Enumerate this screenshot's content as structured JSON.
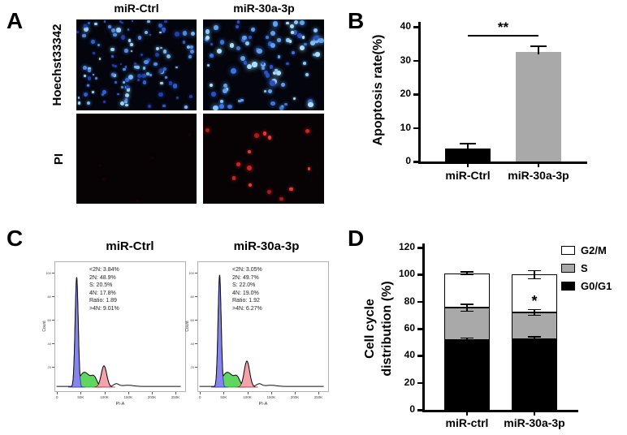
{
  "panel_a": {
    "label": "A",
    "columns": [
      "miR-Ctrl",
      "miR-30a-3p"
    ],
    "rows": [
      "Hoechst33342",
      "PI"
    ],
    "images": [
      {
        "name": "hoechst-mir-ctrl",
        "bg": "#03040c",
        "seed": 11,
        "count": 115,
        "rmin": 1.1,
        "rmax": 2.9,
        "palette": [
          "#2e5fd0",
          "#4f8ae8",
          "#74b6f8",
          "#9ad4ff",
          "#1f3faa"
        ]
      },
      {
        "name": "hoechst-mir-30a-3p",
        "bg": "#03040c",
        "seed": 23,
        "count": 88,
        "rmin": 1.6,
        "rmax": 3.4,
        "palette": [
          "#3a74e0",
          "#5fa0f0",
          "#86c8ff",
          "#a8e0ff",
          "#2a52c0"
        ]
      },
      {
        "name": "pi-mir-ctrl",
        "bg": "#070305",
        "seed": 37,
        "count": 5,
        "rmin": 1.2,
        "rmax": 2.0,
        "palette": [
          "#1c0708",
          "#170506"
        ]
      },
      {
        "name": "pi-mir-30a-3p",
        "bg": "#070305",
        "seed": 49,
        "count": 14,
        "rmin": 1.8,
        "rmax": 3.2,
        "palette": [
          "#d42020",
          "#b01818",
          "#e83838"
        ]
      }
    ]
  },
  "panel_b": {
    "label": "B"
  },
  "panel_c": {
    "label": "C"
  },
  "panel_d": {
    "label": "D"
  },
  "chart_data": [
    {
      "id": "B",
      "type": "bar",
      "ylabel": "Apoptosis rate(%)",
      "categories": [
        "miR-Ctrl",
        "miR-30a-3p"
      ],
      "values": [
        3.8,
        32.6
      ],
      "errors": [
        1.4,
        1.5
      ],
      "bar_colors": [
        "#000000",
        "#a9a9a9"
      ],
      "ylim": [
        0,
        40
      ],
      "yticks": [
        0,
        10,
        20,
        30,
        40
      ],
      "significance": "**"
    },
    {
      "id": "C",
      "type": "flow-histogram-pair",
      "xlabel": "PI-A",
      "ylabel": "Count",
      "xticks": [
        "0",
        "50K",
        "100K",
        "150K",
        "200K",
        "250K"
      ],
      "yticks": [
        "100",
        "80",
        "60",
        "40",
        "20"
      ],
      "plots": [
        {
          "title": "miR-Ctrl",
          "annotation_lines": [
            "<2N: 3.84%",
            "2N: 48.9%",
            "S: 20.5%",
            "4N: 17.8%",
            "Ratio: 1.89",
            ">4N: 9.01%"
          ],
          "peaks": {
            "g1_height": 0.93,
            "g2_height": 0.18
          }
        },
        {
          "title": "miR-30a-3p",
          "annotation_lines": [
            "<2N: 3.05%",
            "2N: 49.7%",
            "S: 22.0%",
            "4N: 19.0%",
            "Ratio: 1.92",
            ">4N: 6.27%"
          ],
          "peaks": {
            "g1_height": 0.95,
            "g2_height": 0.22
          }
        }
      ]
    },
    {
      "id": "D",
      "type": "stacked-bar",
      "ylabel_lines": [
        "Cell cycle",
        "distribution (%)"
      ],
      "categories": [
        "miR-ctrl",
        "miR-30a-3p"
      ],
      "series": [
        {
          "name": "G0/G1",
          "color": "#000000",
          "values": [
            51.5,
            52
          ],
          "errors": [
            1.5,
            2
          ]
        },
        {
          "name": "S",
          "color": "#a9a9a9",
          "values": [
            24,
            20
          ],
          "errors": [
            2.5,
            2
          ]
        },
        {
          "name": "G2/M",
          "color": "#ffffff",
          "values": [
            25.5,
            28
          ],
          "errors": [
            1,
            3
          ]
        }
      ],
      "ylim": [
        0,
        120
      ],
      "yticks": [
        0,
        20,
        40,
        60,
        80,
        100,
        120
      ],
      "legend": [
        "G2/M",
        "S",
        "G0/G1"
      ],
      "significance": {
        "label": "*",
        "category": "miR-30a-3p"
      }
    }
  ]
}
